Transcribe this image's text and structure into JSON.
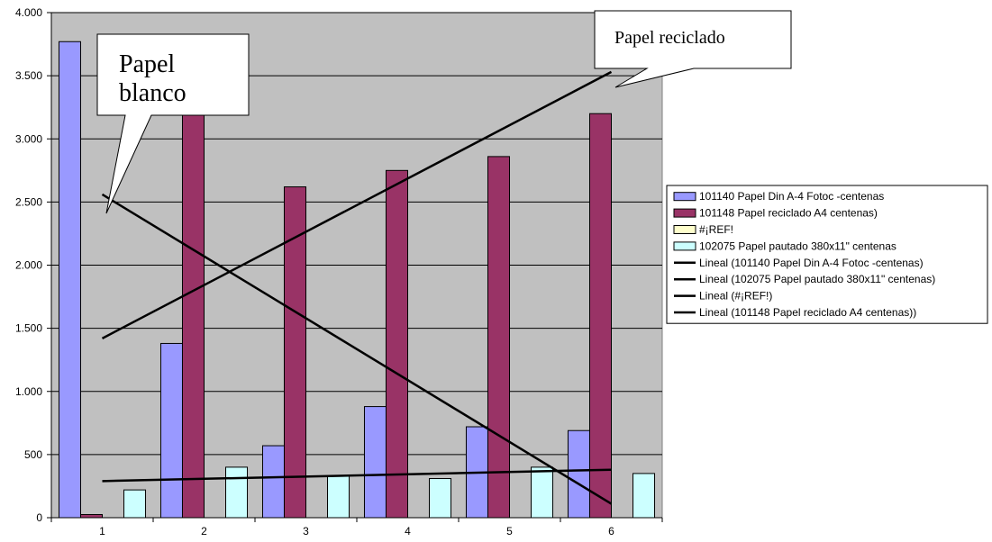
{
  "chart_data": {
    "type": "bar",
    "categories": [
      "1",
      "2",
      "3",
      "4",
      "5",
      "6"
    ],
    "ylim": [
      0,
      4000
    ],
    "y_ticks": [
      0,
      500,
      1000,
      1500,
      2000,
      2500,
      3000,
      3500,
      4000
    ],
    "y_tick_labels": [
      "0",
      "500",
      "1.000",
      "1.500",
      "2.000",
      "2.500",
      "3.000",
      "3.500",
      "4.000"
    ],
    "grid": true,
    "legend_position": "right",
    "series": [
      {
        "name": "101140 Papel Din A-4 Fotoc -centenas",
        "color": "#9999ff",
        "values": [
          3770,
          1380,
          570,
          880,
          720,
          690
        ]
      },
      {
        "name": "101148 Papel reciclado A4 centenas)",
        "color": "#993366",
        "values": [
          25,
          3200,
          2620,
          2750,
          2860,
          3200
        ]
      },
      {
        "name": "#¡REF!",
        "color": "#ffffcc",
        "values": [
          0,
          0,
          0,
          0,
          0,
          0
        ]
      },
      {
        "name": "102075 Papel pautado 380x11\" centenas",
        "color": "#ccffff",
        "values": [
          220,
          400,
          330,
          310,
          400,
          350
        ]
      }
    ],
    "trendlines": [
      {
        "name": "Lineal (101140 Papel Din A-4 Fotoc -centenas)",
        "color": "#000000",
        "from": [
          1,
          2560
        ],
        "to": [
          6,
          110
        ]
      },
      {
        "name": "Lineal (102075 Papel pautado 380x11\" centenas)",
        "color": "#000000",
        "from": [
          1,
          290
        ],
        "to": [
          6,
          380
        ]
      },
      {
        "name": "Lineal (#¡REF!)",
        "color": "#000000",
        "from": null,
        "to": null
      },
      {
        "name": "Lineal (101148 Papel reciclado A4 centenas))",
        "color": "#000000",
        "from": [
          1,
          1420
        ],
        "to": [
          6,
          3530
        ]
      }
    ],
    "annotations": [
      {
        "id": "papel-blanco",
        "lines": [
          "Papel",
          "blanco"
        ]
      },
      {
        "id": "papel-reciclado",
        "lines": [
          "Papel reciclado"
        ]
      }
    ]
  }
}
